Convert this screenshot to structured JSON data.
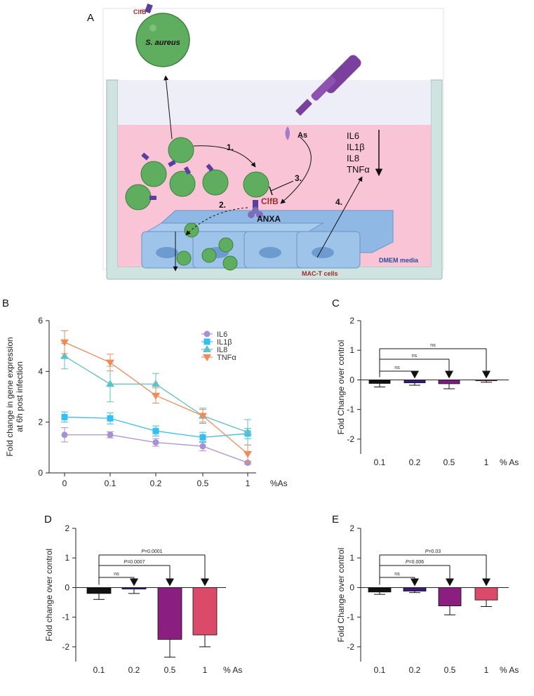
{
  "panels": {
    "A": "A",
    "B": "B",
    "C": "C",
    "D": "D",
    "E": "E"
  },
  "diagram": {
    "bacteria_label": "S. aureus",
    "clfb_top": "ClfB",
    "clfb_cell": "ClfB",
    "anxa": "ANXA",
    "arsenic": "As",
    "cytokines": [
      "IL6",
      "IL1β",
      "IL8",
      "TNFα"
    ],
    "steps": [
      "1.",
      "2.",
      "3.",
      "4."
    ],
    "cells_label": "MAC-T cells",
    "media_label": "DMEM media",
    "colors": {
      "medium": "#f8c4d6",
      "bacteria": "#5fae5f",
      "cells": "#9ec4ea",
      "dropper": "#7b3f9e",
      "clfb": "#9b2c2c",
      "media_text": "#2b4c9a"
    }
  },
  "chart_data": [
    {
      "id": "B",
      "type": "line",
      "ylabel": "Fold change in gene expression\nat 6h post infection",
      "xlabel": "%As",
      "categories": [
        "0",
        "0.1",
        "0.2",
        "0.5",
        "1"
      ],
      "ylim": [
        0,
        6
      ],
      "yticks": [
        0,
        2,
        4,
        6
      ],
      "legend_position": "top-right",
      "series": [
        {
          "name": "IL6",
          "color": "#a98fd6",
          "marker": "circle",
          "values": [
            1.5,
            1.5,
            1.2,
            1.05,
            0.4
          ],
          "errors": [
            0.28,
            0.12,
            0.15,
            0.18,
            0.05
          ]
        },
        {
          "name": "IL1β",
          "color": "#33c0f0",
          "marker": "square",
          "values": [
            2.2,
            2.15,
            1.65,
            1.4,
            1.55
          ],
          "errors": [
            0.2,
            0.22,
            0.2,
            0.2,
            0.2
          ]
        },
        {
          "name": "IL8",
          "color": "#5fc0c8",
          "marker": "triangle-up",
          "values": [
            4.6,
            3.5,
            3.5,
            2.25,
            1.6
          ],
          "errors": [
            0.5,
            0.7,
            0.42,
            0.3,
            0.5
          ]
        },
        {
          "name": "TNFα",
          "color": "#f08c5a",
          "marker": "triangle-down",
          "values": [
            5.15,
            4.35,
            3.05,
            2.25,
            0.75
          ],
          "errors": [
            0.45,
            0.33,
            0.3,
            0.25,
            0.35
          ]
        }
      ]
    },
    {
      "id": "C",
      "type": "bar",
      "ylabel": "Fold Change over control",
      "xlabel": "% As",
      "categories": [
        "0.1",
        "0.2",
        "0.5",
        "1"
      ],
      "values": [
        -0.12,
        -0.1,
        -0.13,
        -0.03
      ],
      "errors": [
        0.12,
        0.08,
        0.17,
        0.05
      ],
      "colors": [
        "#111111",
        "#3b1a78",
        "#7a1f7a",
        "#d8406a"
      ],
      "ylim": [
        -2.5,
        2
      ],
      "yticks": [
        -2,
        -1,
        0,
        1,
        2
      ],
      "comparisons": [
        {
          "to": 1,
          "label": "ns",
          "italic_p": false
        },
        {
          "to": 2,
          "label": "ns",
          "italic_p": false
        },
        {
          "to": 3,
          "label": "ns",
          "italic_p": false
        }
      ]
    },
    {
      "id": "D",
      "type": "bar",
      "ylabel": "Fold change over control",
      "xlabel": "% As",
      "categories": [
        "0.1",
        "0.2",
        "0.5",
        "1"
      ],
      "values": [
        -0.2,
        -0.05,
        -1.75,
        -1.6
      ],
      "errors": [
        0.2,
        0.15,
        0.6,
        0.4
      ],
      "colors": [
        "#111111",
        "#3b1a78",
        "#8a1f7f",
        "#dc4a6a"
      ],
      "ylim": [
        -2.5,
        2
      ],
      "yticks": [
        -2,
        -1,
        0,
        1,
        2
      ],
      "comparisons": [
        {
          "to": 1,
          "label": "ns",
          "italic_p": false
        },
        {
          "to": 2,
          "label": "=0.0007",
          "italic_p": true
        },
        {
          "to": 3,
          "label": "=0.0001",
          "italic_p": true
        }
      ]
    },
    {
      "id": "E",
      "type": "bar",
      "ylabel": "Fold Change over control",
      "xlabel": "% As",
      "categories": [
        "0.1",
        "0.2",
        "0.5",
        "1"
      ],
      "values": [
        -0.15,
        -0.12,
        -0.62,
        -0.42
      ],
      "errors": [
        0.08,
        0.05,
        0.3,
        0.22
      ],
      "colors": [
        "#111111",
        "#3b1a78",
        "#8a1f7f",
        "#dc4a6a"
      ],
      "ylim": [
        -2.5,
        2
      ],
      "yticks": [
        -2,
        -1,
        0,
        1,
        2
      ],
      "comparisons": [
        {
          "to": 1,
          "label": "ns",
          "italic_p": false
        },
        {
          "to": 2,
          "label": "=0.006",
          "italic_p": true
        },
        {
          "to": 3,
          "label": "=0.03",
          "italic_p": true
        }
      ]
    }
  ]
}
